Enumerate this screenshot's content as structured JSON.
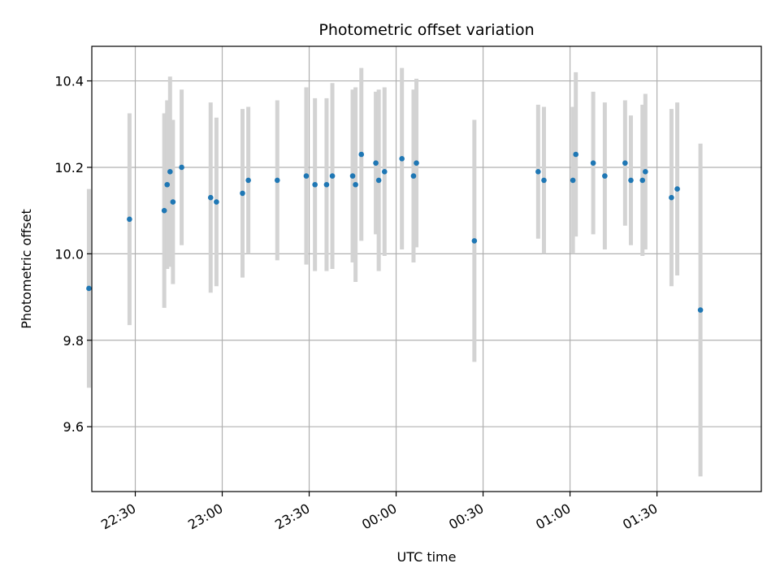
{
  "chart_data": {
    "type": "scatter",
    "title": "Photometric offset variation",
    "xlabel": "UTC time",
    "ylabel": "Photometric offset",
    "x_unit": "UTC (HH:MM), night spanning midnight",
    "xlim": [
      "22:15",
      "02:06"
    ],
    "ylim": [
      9.45,
      10.48
    ],
    "x_ticks": [
      "22:30",
      "23:00",
      "23:30",
      "00:00",
      "00:30",
      "01:00",
      "01:30"
    ],
    "y_ticks": [
      9.6,
      9.8,
      10.0,
      10.2,
      10.4
    ],
    "y_tick_labels": [
      "9.6",
      "9.8",
      "10.0",
      "10.2",
      "10.4"
    ],
    "grid": true,
    "point_color": "#1f77b4",
    "errorbar_color": "#d3d3d3",
    "series": [
      {
        "points": [
          {
            "time": "22:14",
            "y": 9.92,
            "err": 0.23
          },
          {
            "time": "22:28",
            "y": 10.08,
            "err": 0.245
          },
          {
            "time": "22:40",
            "y": 10.1,
            "err": 0.225
          },
          {
            "time": "22:41",
            "y": 10.16,
            "err": 0.195
          },
          {
            "time": "22:42",
            "y": 10.19,
            "err": 0.22
          },
          {
            "time": "22:43",
            "y": 10.12,
            "err": 0.19
          },
          {
            "time": "22:46",
            "y": 10.2,
            "err": 0.18
          },
          {
            "time": "22:56",
            "y": 10.13,
            "err": 0.22
          },
          {
            "time": "22:58",
            "y": 10.12,
            "err": 0.195
          },
          {
            "time": "23:07",
            "y": 10.14,
            "err": 0.195
          },
          {
            "time": "23:09",
            "y": 10.17,
            "err": 0.17
          },
          {
            "time": "23:19",
            "y": 10.17,
            "err": 0.185
          },
          {
            "time": "23:29",
            "y": 10.18,
            "err": 0.205
          },
          {
            "time": "23:32",
            "y": 10.16,
            "err": 0.2
          },
          {
            "time": "23:36",
            "y": 10.16,
            "err": 0.2
          },
          {
            "time": "23:38",
            "y": 10.18,
            "err": 0.215
          },
          {
            "time": "23:45",
            "y": 10.18,
            "err": 0.2
          },
          {
            "time": "23:46",
            "y": 10.16,
            "err": 0.225
          },
          {
            "time": "23:48",
            "y": 10.23,
            "err": 0.2
          },
          {
            "time": "23:53",
            "y": 10.21,
            "err": 0.165
          },
          {
            "time": "23:54",
            "y": 10.17,
            "err": 0.21
          },
          {
            "time": "23:56",
            "y": 10.19,
            "err": 0.195
          },
          {
            "time": "00:02",
            "y": 10.22,
            "err": 0.21
          },
          {
            "time": "00:06",
            "y": 10.18,
            "err": 0.2
          },
          {
            "time": "00:07",
            "y": 10.21,
            "err": 0.195
          },
          {
            "time": "00:27",
            "y": 10.03,
            "err": 0.28
          },
          {
            "time": "00:49",
            "y": 10.19,
            "err": 0.155
          },
          {
            "time": "00:51",
            "y": 10.17,
            "err": 0.17
          },
          {
            "time": "01:01",
            "y": 10.17,
            "err": 0.17
          },
          {
            "time": "01:02",
            "y": 10.23,
            "err": 0.19
          },
          {
            "time": "01:08",
            "y": 10.21,
            "err": 0.165
          },
          {
            "time": "01:12",
            "y": 10.18,
            "err": 0.17
          },
          {
            "time": "01:19",
            "y": 10.21,
            "err": 0.145
          },
          {
            "time": "01:21",
            "y": 10.17,
            "err": 0.15
          },
          {
            "time": "01:25",
            "y": 10.17,
            "err": 0.175
          },
          {
            "time": "01:26",
            "y": 10.19,
            "err": 0.18
          },
          {
            "time": "01:35",
            "y": 10.13,
            "err": 0.205
          },
          {
            "time": "01:37",
            "y": 10.15,
            "err": 0.2
          },
          {
            "time": "01:45",
            "y": 9.87,
            "err": 0.385
          }
        ]
      }
    ]
  }
}
